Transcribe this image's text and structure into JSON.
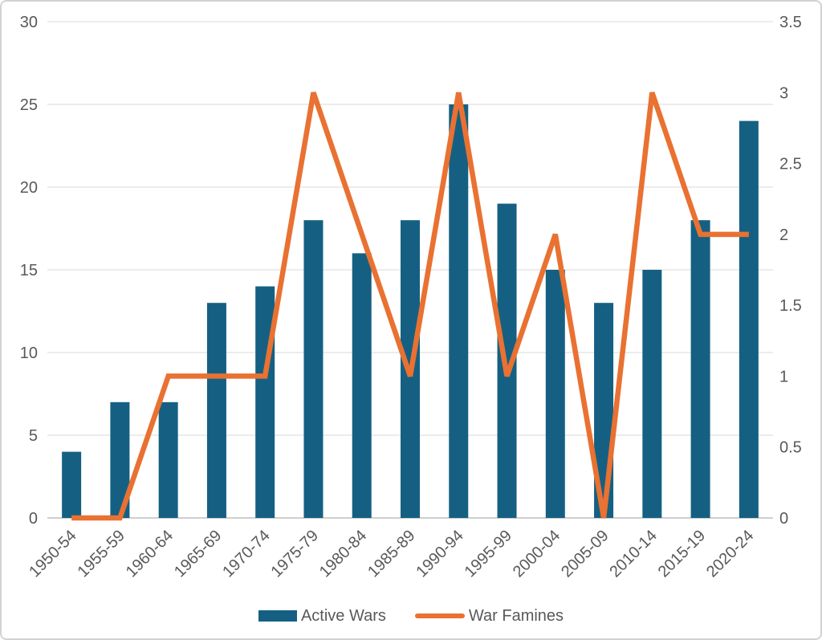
{
  "chart_data": {
    "type": "combo-bar-line",
    "title": "",
    "xlabel": "",
    "ylabel": "",
    "categories": [
      "1950-54",
      "1955-59",
      "1960-64",
      "1965-69",
      "1970-74",
      "1975-79",
      "1980-84",
      "1985-89",
      "1990-94",
      "1995-99",
      "2000-04",
      "2005-09",
      "2010-14",
      "2015-19",
      "2020-24"
    ],
    "series": [
      {
        "name": "Active Wars",
        "type": "bar",
        "axis": "left",
        "color": "#156082",
        "values": [
          4,
          7,
          7,
          13,
          14,
          18,
          16,
          18,
          25,
          19,
          15,
          13,
          15,
          18,
          24
        ]
      },
      {
        "name": "War Famines",
        "type": "line",
        "axis": "right",
        "color": "#E97132",
        "values": [
          0,
          0,
          1,
          1,
          1,
          3,
          2,
          1,
          3,
          1,
          2,
          0,
          3,
          2,
          2
        ]
      }
    ],
    "left_axis": {
      "min": 0,
      "max": 30,
      "step": 5,
      "ticks": [
        "0",
        "5",
        "10",
        "15",
        "20",
        "25",
        "30"
      ]
    },
    "right_axis": {
      "min": 0,
      "max": 3.5,
      "step": 0.5,
      "ticks": [
        "0",
        "0.5",
        "1",
        "1.5",
        "2",
        "2.5",
        "3",
        "3.5"
      ]
    },
    "grid": "horizontal-left-axis-only",
    "legend_position": "bottom",
    "colors": {
      "grid_line": "#D9D9D9",
      "axis_line": "#BFBFBF",
      "tick_text": "#595959",
      "background": "#FFFFFF",
      "card_border": "#D2D2D2"
    }
  }
}
